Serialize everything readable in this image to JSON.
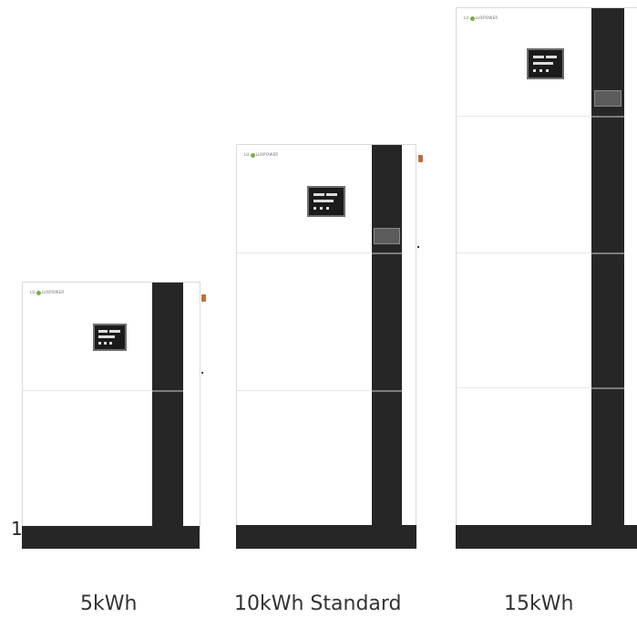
{
  "products": [
    {
      "label": "5kWh"
    },
    {
      "label": "10kWh Standard"
    },
    {
      "label": "15kWh"
    }
  ],
  "logo_text": "LUXPOWER",
  "stray_text": "1",
  "colors": {
    "panel": "#ffffff",
    "strip": "#262626",
    "accent_port": "#c46b3e",
    "logo_leaf": "#74b043"
  }
}
